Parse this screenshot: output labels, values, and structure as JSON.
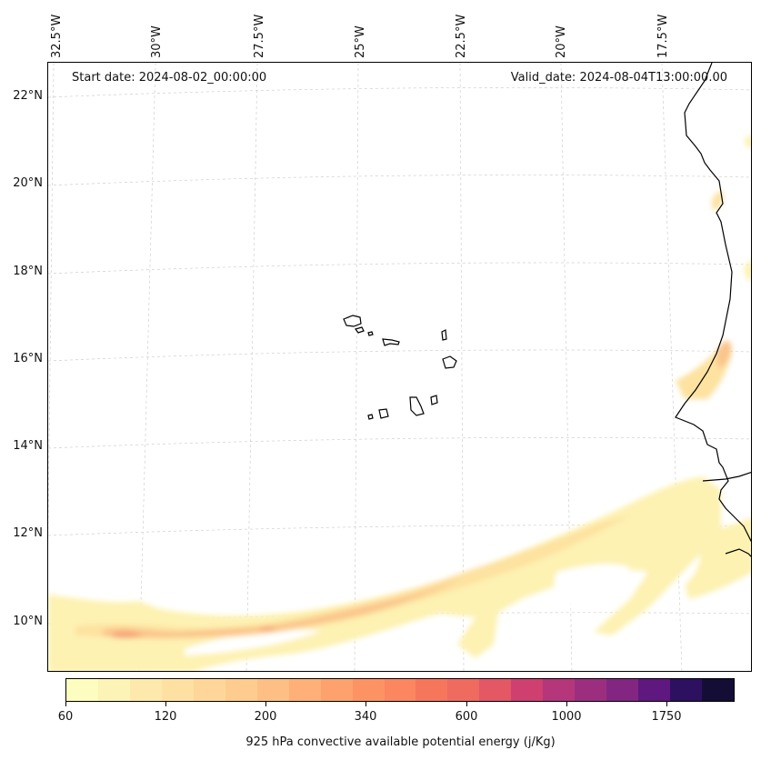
{
  "header": {
    "start_date": "Start date: 2024-08-02_00:00:00",
    "valid_date": "Valid_date: 2024-08-04T13:00:00.00"
  },
  "axes": {
    "longitude_labels": [
      "32.5°W",
      "30°W",
      "27.5°W",
      "25°W",
      "22.5°W",
      "20°W",
      "17.5°W"
    ],
    "latitude_labels": [
      "22°N",
      "20°N",
      "18°N",
      "16°N",
      "14°N",
      "12°N",
      "10°N"
    ],
    "gridlines": true
  },
  "colorbar": {
    "title": "925 hPa convective available potential energy (j/Kg)",
    "tick_labels": [
      "60",
      "120",
      "200",
      "340",
      "600",
      "1000",
      "1750"
    ],
    "colors": [
      "#fcfdbf",
      "#fcf3b6",
      "#fde9ac",
      "#fee0a3",
      "#fed699",
      "#fecc8f",
      "#febf84",
      "#feb078",
      "#fea26d",
      "#fd9363",
      "#fb8660",
      "#f6765c",
      "#ef6a5f",
      "#e45765",
      "#cf4070",
      "#b5367a",
      "#9c2e7f",
      "#822681",
      "#5f187f",
      "#2d1160",
      "#140e36"
    ]
  },
  "map": {
    "region": "Cabo Verde and West African coast",
    "fill_colors": {
      "light": "#fdf2b2",
      "mid": "#fde2a0",
      "strong": "#fbc58c",
      "core": "#f6a87a"
    }
  }
}
